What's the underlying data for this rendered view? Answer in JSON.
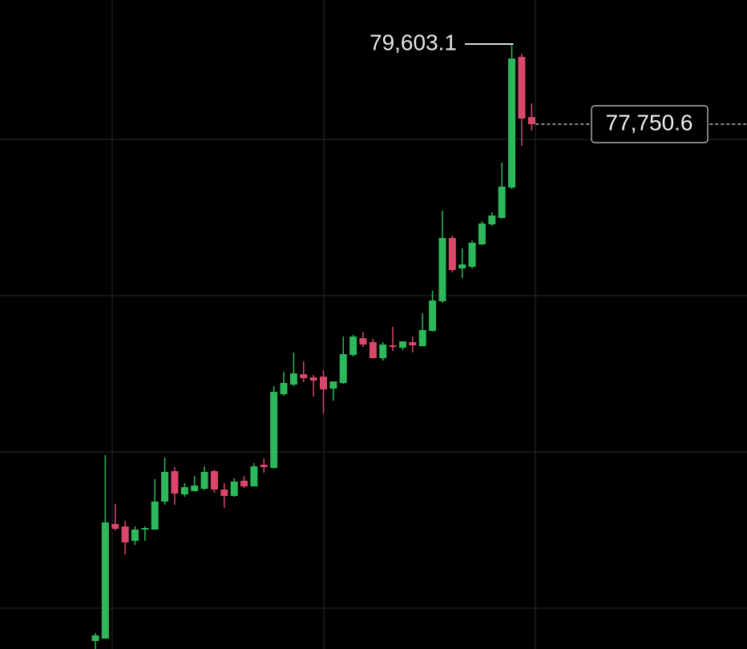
{
  "chart_data": {
    "type": "candlestick",
    "ylim": [
      65617,
      80622
    ],
    "up_color": "#2eb85c",
    "down_color": "#d9486a",
    "open": [
      65802,
      65858,
      68507,
      68451,
      68118,
      68377,
      68377,
      69025,
      69729,
      69192,
      69266,
      69322,
      69729,
      69303,
      69155,
      69507,
      69377,
      69877,
      69803,
      71508,
      71730,
      71971,
      71897,
      71915,
      71637,
      71767,
      72415,
      72804,
      72712,
      72341,
      72638,
      72582,
      72712,
      72619,
      72971,
      73657,
      75120,
      74416,
      74453,
      74972,
      75435,
      75583,
      76287,
      79307,
      77917
    ],
    "high": [
      65987,
      70100,
      68970,
      68581,
      68451,
      68451,
      69544,
      70044,
      69822,
      69451,
      69618,
      69840,
      69766,
      69451,
      69563,
      69618,
      69915,
      70026,
      71693,
      72026,
      72471,
      72267,
      71952,
      72063,
      71804,
      72841,
      72879,
      72953,
      72786,
      72712,
      73064,
      72730,
      72841,
      73379,
      73897,
      75750,
      75176,
      74879,
      75064,
      75509,
      75713,
      76861,
      79603.1,
      79381,
      78232
    ],
    "low": [
      65617,
      65858,
      68358,
      67803,
      68025,
      68118,
      68377,
      68951,
      68951,
      69136,
      69266,
      69285,
      69229,
      68877,
      69136,
      69340,
      69377,
      69692,
      69785,
      71471,
      71693,
      71786,
      71452,
      71063,
      71359,
      71749,
      72378,
      72601,
      72341,
      72286,
      72508,
      72527,
      72471,
      72619,
      72953,
      73620,
      74323,
      74194,
      74416,
      74953,
      75398,
      75565,
      76250,
      77250,
      77602
    ],
    "close": [
      65932,
      68544,
      68395,
      68081,
      68377,
      68414,
      69025,
      69711,
      69211,
      69359,
      69396,
      69711,
      69303,
      69155,
      69488,
      69377,
      69840,
      69822,
      71563,
      71767,
      71989,
      71878,
      71823,
      71619,
      71804,
      72434,
      72841,
      72656,
      72341,
      72656,
      72601,
      72730,
      72638,
      72990,
      73675,
      75120,
      74379,
      74509,
      75009,
      75454,
      75639,
      76306,
      79270,
      77880,
      77750.6
    ],
    "high_marker": {
      "value": 79603.1,
      "label": "79,603.1"
    },
    "last_price": {
      "value": 77750.6,
      "label": "77,750.6"
    }
  }
}
